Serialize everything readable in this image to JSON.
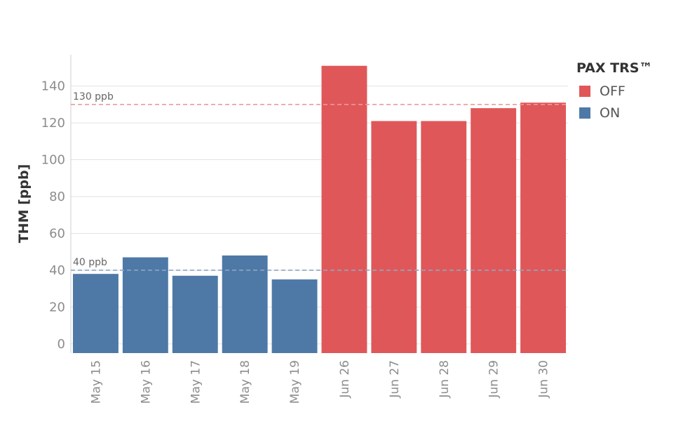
{
  "colors": {
    "off": "#e05759",
    "on": "#4e79a7",
    "grid": "#e2e2e2",
    "axis": "#cfcfcf"
  },
  "legend": {
    "title": "PAX TRS™",
    "items": [
      {
        "label": "OFF",
        "color": "#e05759"
      },
      {
        "label": "ON",
        "color": "#4e79a7"
      }
    ]
  },
  "reference_lines": [
    {
      "label": "130 ppb",
      "value": 130,
      "color": "#ec9a9b"
    },
    {
      "label": "40 ppb",
      "value": 40,
      "color": "#8ea6c4"
    }
  ],
  "chart_data": {
    "type": "bar",
    "title": "",
    "xlabel": "",
    "ylabel": "THM [ppb]",
    "ylim": [
      -5,
      157
    ],
    "yticks": [
      0,
      20,
      40,
      60,
      80,
      100,
      120,
      140
    ],
    "grid": true,
    "legend_position": "right",
    "categories": [
      "May 15",
      "May 16",
      "May 17",
      "May 18",
      "May 19",
      "Jun 26",
      "Jun 27",
      "Jun 28",
      "Jun 29",
      "Jun 30"
    ],
    "values": [
      38,
      47,
      37,
      48,
      35,
      151,
      121,
      121,
      128,
      131
    ],
    "groups": [
      "ON",
      "ON",
      "ON",
      "ON",
      "ON",
      "OFF",
      "OFF",
      "OFF",
      "OFF",
      "OFF"
    ]
  }
}
